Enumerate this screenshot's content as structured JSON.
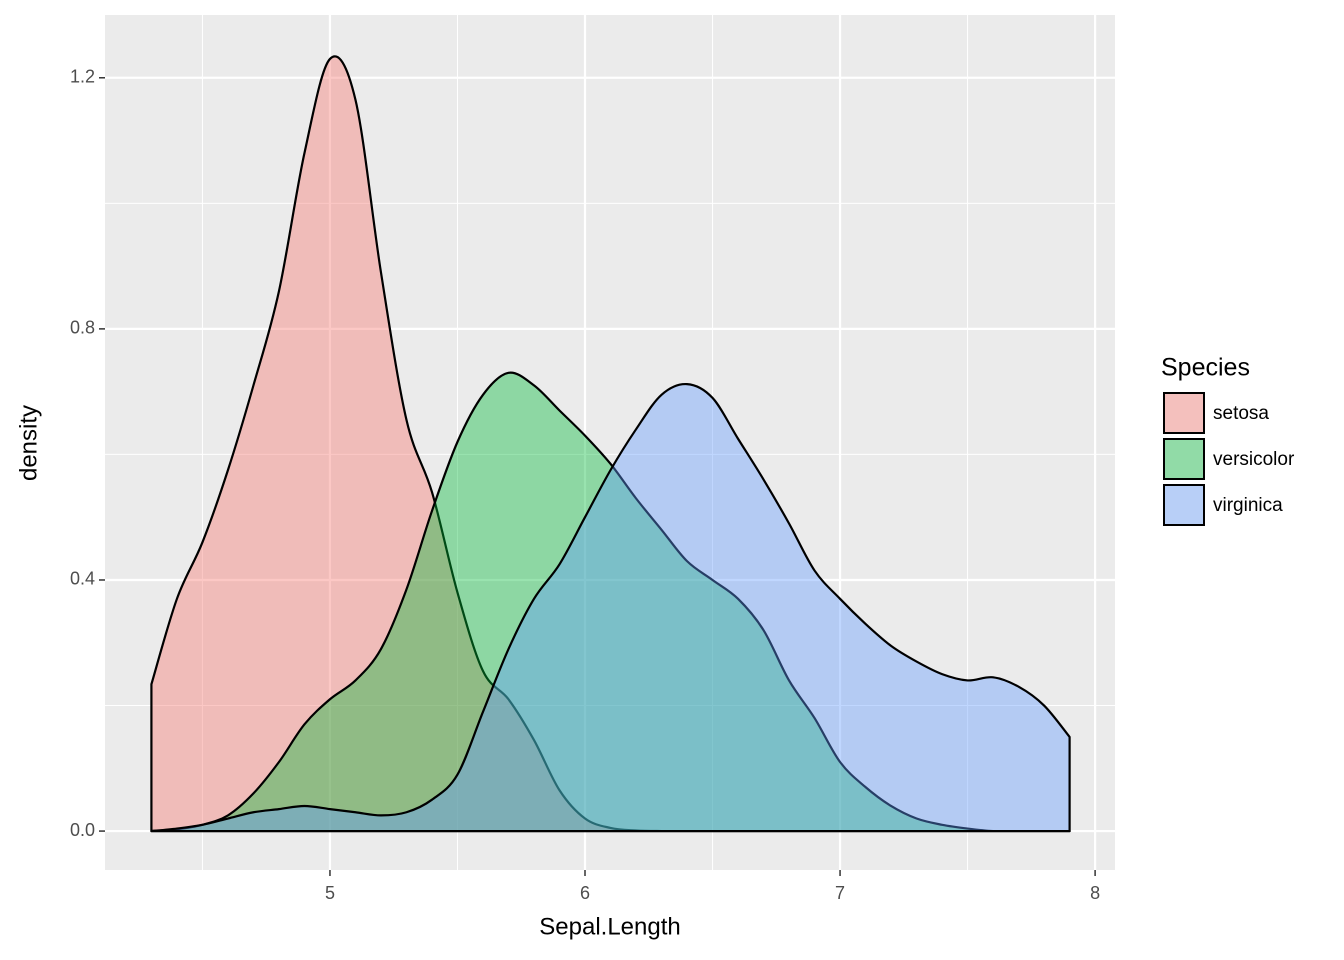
{
  "chart_data": {
    "type": "density",
    "x_label": "Sepal.Length",
    "y_label": "density",
    "legend_title": "Species",
    "legend_position": "right",
    "grid": true,
    "x": [
      4.3,
      4.4,
      4.5,
      4.6,
      4.7,
      4.8,
      4.9,
      5.0,
      5.1,
      5.2,
      5.3,
      5.4,
      5.5,
      5.6,
      5.7,
      5.8,
      5.9,
      6.0,
      6.1,
      6.2,
      6.3,
      6.4,
      6.5,
      6.6,
      6.7,
      6.8,
      6.9,
      7.0,
      7.1,
      7.2,
      7.3,
      7.4,
      7.5,
      7.6,
      7.7,
      7.8,
      7.9
    ],
    "series": [
      {
        "name": "setosa",
        "color": "#F8766D",
        "values": [
          0.234,
          0.37,
          0.46,
          0.575,
          0.71,
          0.86,
          1.08,
          1.23,
          1.165,
          0.89,
          0.655,
          0.54,
          0.38,
          0.255,
          0.21,
          0.145,
          0.065,
          0.02,
          0.005,
          0.001,
          0,
          0,
          0,
          0,
          0,
          0,
          0,
          0,
          0,
          0,
          0,
          0,
          0,
          0,
          0,
          0,
          0
        ]
      },
      {
        "name": "versicolor",
        "color": "#00BA38",
        "values": [
          0,
          0.003,
          0.01,
          0.025,
          0.06,
          0.11,
          0.17,
          0.21,
          0.24,
          0.29,
          0.385,
          0.51,
          0.62,
          0.695,
          0.73,
          0.71,
          0.67,
          0.63,
          0.585,
          0.53,
          0.48,
          0.43,
          0.4,
          0.37,
          0.32,
          0.24,
          0.18,
          0.11,
          0.07,
          0.04,
          0.02,
          0.01,
          0.004,
          0,
          0,
          0,
          0
        ]
      },
      {
        "name": "virginica",
        "color": "#619CFF",
        "values": [
          0,
          0.004,
          0.01,
          0.02,
          0.03,
          0.035,
          0.04,
          0.035,
          0.03,
          0.025,
          0.03,
          0.05,
          0.09,
          0.19,
          0.29,
          0.37,
          0.425,
          0.5,
          0.575,
          0.64,
          0.695,
          0.712,
          0.69,
          0.625,
          0.56,
          0.49,
          0.415,
          0.37,
          0.33,
          0.295,
          0.27,
          0.25,
          0.24,
          0.245,
          0.23,
          0.2,
          0.15
        ]
      }
    ],
    "fill_opacity": 0.4,
    "xlim": [
      4.118,
      8.078
    ],
    "ylim": [
      -0.062,
      1.3
    ],
    "xticks": [
      5,
      6,
      7,
      8
    ],
    "yticks": [
      {
        "value": 0,
        "label": "0.0"
      },
      0.4,
      0.8,
      1.2
    ],
    "x_minor_grid": [
      4.5,
      5.5,
      6.5,
      7.5
    ],
    "y_minor_grid": [
      0.2,
      0.6,
      1.0
    ]
  }
}
